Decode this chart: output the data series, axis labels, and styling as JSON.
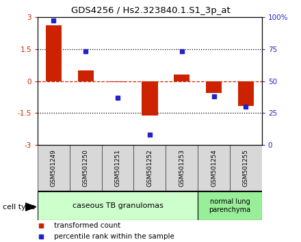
{
  "title": "GDS4256 / Hs2.323840.1.S1_3p_at",
  "samples": [
    "GSM501249",
    "GSM501250",
    "GSM501251",
    "GSM501252",
    "GSM501253",
    "GSM501254",
    "GSM501255"
  ],
  "red_values": [
    2.6,
    0.5,
    -0.05,
    -1.62,
    0.32,
    -0.55,
    -1.15
  ],
  "blue_values": [
    97,
    73,
    37,
    8,
    73,
    38,
    30
  ],
  "red_color": "#cc2200",
  "blue_color": "#2222cc",
  "ylim_left": [
    -3,
    3
  ],
  "ylim_right": [
    0,
    100
  ],
  "yticks_left": [
    -3,
    -1.5,
    0,
    1.5,
    3
  ],
  "ytick_labels_left": [
    "-3",
    "-1.5",
    "0",
    "1.5",
    "3"
  ],
  "yticks_right": [
    0,
    25,
    50,
    75,
    100
  ],
  "ytick_labels_right": [
    "0",
    "25",
    "50",
    "75",
    "100%"
  ],
  "hlines": [
    1.5,
    -1.5
  ],
  "group1_label": "caseous TB granulomas",
  "group1_count": 5,
  "group2_label": "normal lung\nparenchyma",
  "group2_count": 2,
  "group1_color": "#ccffcc",
  "group2_color": "#99ee99",
  "cell_type_label": "cell type",
  "legend_red": "transformed count",
  "legend_blue": "percentile rank within the sample",
  "bg_color": "#d8d8d8"
}
